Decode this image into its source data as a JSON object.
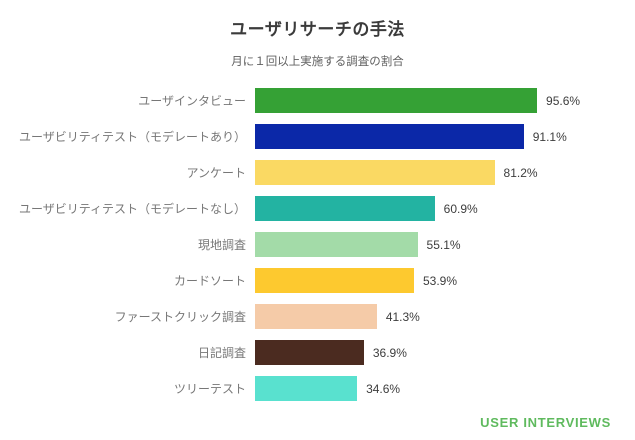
{
  "header": {
    "title": "ユーザリサーチの手法",
    "subtitle": "月に１回以上実施する調査の割合"
  },
  "footer": {
    "brand": "USER INTERVIEWS",
    "brand_color": "#5fba5e"
  },
  "colors": {
    "background": "#ffffff",
    "title_text": "#3b3b3b",
    "subtitle_text": "#606060",
    "category_text": "#777777",
    "value_text": "#3d3d3d"
  },
  "chart_data": {
    "type": "bar",
    "orientation": "horizontal",
    "title": "ユーザリサーチの手法",
    "subtitle": "月に１回以上実施する調査の割合",
    "categories": [
      "ユーザインタビュー",
      "ユーザビリティテスト（モデレートあり）",
      "アンケート",
      "ユーザビリティテスト（モデレートなし）",
      "現地調査",
      "カードソート",
      "ファーストクリック調査",
      "日記調査",
      "ツリーテスト"
    ],
    "values": [
      95.6,
      91.1,
      81.2,
      60.9,
      55.1,
      53.9,
      41.3,
      36.9,
      34.6
    ],
    "value_labels": [
      "95.6%",
      "91.1%",
      "81.2%",
      "60.9%",
      "55.1%",
      "53.9%",
      "41.3%",
      "36.9%",
      "34.6%"
    ],
    "bar_colors": [
      "#35a135",
      "#0b28a8",
      "#fad963",
      "#23b3a2",
      "#a3dba8",
      "#fdc92f",
      "#f5cba8",
      "#4b2b20",
      "#59e1cf"
    ],
    "xlim": [
      0,
      100
    ],
    "grid": false,
    "legend": false,
    "value_label_position": "outside-right"
  }
}
